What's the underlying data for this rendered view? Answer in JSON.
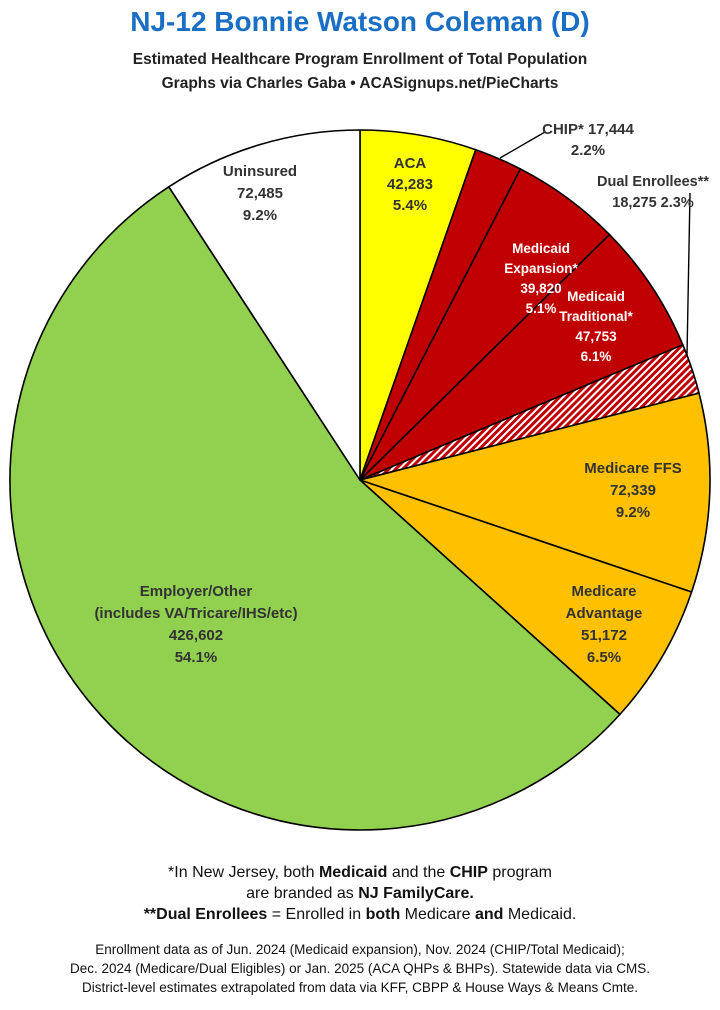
{
  "header": {
    "title": "NJ-12 Bonnie Watson Coleman (D)",
    "subtitle": "Estimated Healthcare Program Enrollment of Total Population",
    "credit": "Graphs via Charles Gaba  •  ACASignups.net/PieCharts"
  },
  "chart_data": {
    "type": "pie",
    "start_angle_deg": 0,
    "direction": "clockwise",
    "slices": [
      {
        "name": "ACA",
        "value": 42283,
        "percent": "5.4%",
        "color": "#ffff00",
        "text_color": "#333333",
        "label_lines": [
          "ACA",
          "42,283",
          "5.4%"
        ]
      },
      {
        "name": "CHIP*",
        "value": 17444,
        "percent": "2.2%",
        "color": "#c00000",
        "text_color": "#333333",
        "label_lines": [
          "CHIP* 17,444",
          "2.2%"
        ]
      },
      {
        "name": "Medicaid Expansion*",
        "value": 39820,
        "percent": "5.1%",
        "color": "#c00000",
        "text_color": "#ffffff",
        "label_lines": [
          "Medicaid",
          "Expansion*",
          "39,820",
          "5.1%"
        ]
      },
      {
        "name": "Medicaid Traditional*",
        "value": 47753,
        "percent": "6.1%",
        "color": "#c00000",
        "text_color": "#ffffff",
        "label_lines": [
          "Medicaid",
          "Traditional*",
          "47,753",
          "6.1%"
        ]
      },
      {
        "name": "Dual Enrollees**",
        "value": 18275,
        "percent": "2.3%",
        "color": "#c00000",
        "pattern": "hatched",
        "text_color": "#333333",
        "label_lines": [
          "Dual Enrollees**",
          "18,275 2.3%"
        ]
      },
      {
        "name": "Medicare FFS",
        "value": 72339,
        "percent": "9.2%",
        "color": "#ffc000",
        "text_color": "#333333",
        "label_lines": [
          "Medicare FFS",
          "72,339",
          "9.2%"
        ]
      },
      {
        "name": "Medicare Advantage",
        "value": 51172,
        "percent": "6.5%",
        "color": "#ffc000",
        "text_color": "#333333",
        "label_lines": [
          "Medicare",
          "Advantage",
          "51,172",
          "6.5%"
        ]
      },
      {
        "name": "Employer/Other (includes VA/Tricare/IHS/etc)",
        "value": 426602,
        "percent": "54.1%",
        "color": "#92d050",
        "text_color": "#333333",
        "label_lines": [
          "Employer/Other",
          "(includes VA/Tricare/IHS/etc)",
          "426,602",
          "54.1%"
        ]
      },
      {
        "name": "Uninsured",
        "value": 72485,
        "percent": "9.2%",
        "color": "#ffffff",
        "text_color": "#333333",
        "label_lines": [
          "Uninsured",
          "72,485",
          "9.2%"
        ]
      }
    ]
  },
  "notes": {
    "line1_pre": "*In New Jersey, both ",
    "line1_b1": "Medicaid",
    "line1_mid": " and the ",
    "line1_b2": "CHIP",
    "line1_post": " program",
    "line2_pre": "are branded as ",
    "line2_b": "NJ FamilyCare.",
    "line3_b1": "**Dual Enrollees",
    "line3_mid1": " = Enrolled in ",
    "line3_b2": "both",
    "line3_mid2": " Medicare ",
    "line3_b3": "and",
    "line3_post": " Medicaid."
  },
  "source": {
    "line1": "Enrollment data as of Jun. 2024 (Medicaid expansion), Nov. 2024 (CHIP/Total Medicaid);",
    "line2": "Dec. 2024 (Medicare/Dual Eligibles) or Jan. 2025 (ACA QHPs & BHPs). Statewide data via CMS.",
    "line3": "District-level estimates extrapolated from data via KFF, CBPP & House Ways & Means Cmte."
  }
}
